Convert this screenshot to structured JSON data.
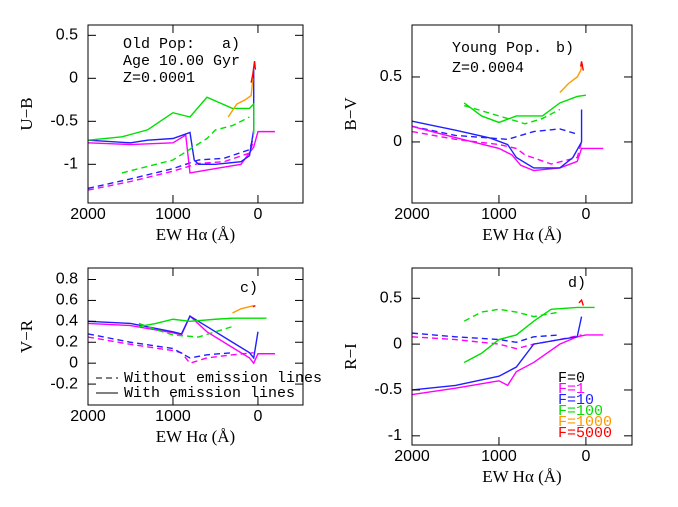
{
  "chart_data": [
    {
      "type": "line",
      "ylabel": "U−B",
      "xlabel": "EW Hα (Å)",
      "xlim": [
        2000,
        -530
      ],
      "ylim": [
        -1.45,
        0.62
      ],
      "xticks": [
        2000,
        1000,
        0
      ],
      "yticks": [
        0.5,
        0,
        -0.5,
        -1
      ],
      "annotations": [
        "Old Pop:",
        "Age 10.00 Gyr",
        "Z=0.0001",
        "a)"
      ],
      "series": [
        {
          "color": "#ff00ff",
          "dashed": true,
          "x": [
            2000,
            1500,
            1000,
            700,
            400,
            100,
            50
          ],
          "values": [
            -1.3,
            -1.2,
            -1.08,
            -0.99,
            -0.97,
            -0.87,
            -0.72
          ]
        },
        {
          "color": "#2020ff",
          "dashed": true,
          "x": [
            2000,
            1500,
            1000,
            700,
            400,
            100,
            50
          ],
          "values": [
            -1.28,
            -1.17,
            -1.05,
            -0.95,
            -0.93,
            -0.83,
            -0.68
          ]
        },
        {
          "color": "#ff00ff",
          "dashed": false,
          "x": [
            2000,
            1500,
            1000,
            850,
            800,
            500,
            200,
            50,
            0,
            -200
          ],
          "values": [
            -0.75,
            -0.77,
            -0.75,
            -0.66,
            -1.1,
            -1.05,
            -1.0,
            -0.8,
            -0.62,
            -0.62
          ]
        },
        {
          "color": "#2020ff",
          "dashed": false,
          "x": [
            2000,
            1500,
            1300,
            1000,
            800,
            750,
            700,
            500,
            200,
            100,
            50,
            50
          ],
          "values": [
            -0.72,
            -0.75,
            -0.72,
            -0.7,
            -0.63,
            -0.95,
            -1.0,
            -1.0,
            -0.97,
            -0.9,
            -0.6,
            0.1
          ]
        },
        {
          "color": "#00e000",
          "dashed": false,
          "x": [
            2000,
            1600,
            1300,
            1000,
            800,
            600,
            300,
            100,
            50,
            50
          ],
          "values": [
            -0.72,
            -0.68,
            -0.6,
            -0.4,
            -0.45,
            -0.22,
            -0.35,
            -0.35,
            -0.3,
            -0.65
          ]
        },
        {
          "color": "#00e000",
          "dashed": true,
          "x": [
            1600,
            1000,
            600,
            500,
            300,
            100
          ],
          "values": [
            -1.1,
            -0.95,
            -0.7,
            -0.6,
            -0.55,
            -0.45
          ]
        },
        {
          "color": "#ff9900",
          "dashed": false,
          "x": [
            350,
            250,
            150,
            80,
            60
          ],
          "values": [
            -0.45,
            -0.3,
            -0.25,
            -0.2,
            0
          ]
        },
        {
          "color": "#ff0000",
          "dashed": false,
          "x": [
            80,
            60,
            40,
            30
          ],
          "values": [
            -0.05,
            0.05,
            0.2,
            0.1
          ]
        }
      ]
    },
    {
      "type": "line",
      "ylabel": "B−V",
      "xlabel": "EW Hα (Å)",
      "xlim": [
        2000,
        -530
      ],
      "ylim": [
        -0.47,
        0.9
      ],
      "xticks": [
        2000,
        1000,
        0
      ],
      "yticks": [
        0.5,
        0
      ],
      "annotations": [
        "Young Pop.",
        "b)",
        "Z=0.0004"
      ],
      "series": [
        {
          "color": "#ff00ff",
          "dashed": true,
          "x": [
            2000,
            1500,
            1000,
            800,
            700,
            400,
            100,
            50
          ],
          "values": [
            0.08,
            0.02,
            -0.02,
            -0.05,
            -0.1,
            -0.17,
            -0.12,
            0
          ]
        },
        {
          "color": "#2020ff",
          "dashed": true,
          "x": [
            2000,
            1500,
            900,
            600,
            300,
            100
          ],
          "values": [
            0.12,
            0.05,
            0.02,
            0.08,
            0.1,
            0.06
          ]
        },
        {
          "color": "#ff00ff",
          "dashed": false,
          "x": [
            2000,
            1600,
            1000,
            850,
            750,
            600,
            300,
            100,
            50,
            0,
            -200
          ],
          "values": [
            0.12,
            0.05,
            -0.05,
            -0.1,
            -0.18,
            -0.22,
            -0.2,
            -0.15,
            -0.05,
            -0.05,
            -0.05
          ]
        },
        {
          "color": "#2020ff",
          "dashed": false,
          "x": [
            2000,
            1500,
            1100,
            900,
            800,
            600,
            300,
            150,
            50,
            50
          ],
          "values": [
            0.16,
            0.09,
            0.03,
            -0.02,
            -0.12,
            -0.2,
            -0.2,
            -0.12,
            0,
            0.25
          ]
        },
        {
          "color": "#00e000",
          "dashed": false,
          "x": [
            1400,
            1200,
            1000,
            800,
            500,
            300,
            100,
            0
          ],
          "values": [
            0.3,
            0.2,
            0.15,
            0.2,
            0.2,
            0.3,
            0.35,
            0.36
          ]
        },
        {
          "color": "#00e000",
          "dashed": true,
          "x": [
            1400,
            1100,
            900,
            700,
            500,
            300
          ],
          "values": [
            0.28,
            0.22,
            0.18,
            0.14,
            0.18,
            0.25
          ]
        },
        {
          "color": "#ff9900",
          "dashed": false,
          "x": [
            300,
            200,
            100,
            60,
            40
          ],
          "values": [
            0.38,
            0.45,
            0.5,
            0.55,
            0.6
          ]
        },
        {
          "color": "#ff0000",
          "dashed": false,
          "x": [
            60,
            50,
            30
          ],
          "values": [
            0.58,
            0.62,
            0.55
          ]
        }
      ]
    },
    {
      "type": "line",
      "ylabel": "V−R",
      "xlabel": "EW Hα (Å)",
      "xlim": [
        2000,
        -530
      ],
      "ylim": [
        -0.4,
        0.91
      ],
      "xticks": [
        2000,
        1000,
        0
      ],
      "yticks": [
        0.8,
        0.6,
        0.4,
        0.2,
        0,
        -0.2
      ],
      "annotations": [
        "c)"
      ],
      "style_legend": [
        {
          "name": "Without emission lines",
          "dashed": true
        },
        {
          "name": "With emission lines",
          "dashed": false
        }
      ],
      "series": [
        {
          "color": "#ff00ff",
          "dashed": true,
          "x": [
            2000,
            1500,
            1000,
            900,
            800,
            600,
            300,
            50
          ],
          "values": [
            0.25,
            0.18,
            0.12,
            0.1,
            0.0,
            0.05,
            0.08,
            0.1
          ]
        },
        {
          "color": "#2020ff",
          "dashed": true,
          "x": [
            2000,
            1500,
            1000,
            800,
            600,
            300
          ],
          "values": [
            0.28,
            0.2,
            0.14,
            0.05,
            0.08,
            0.1
          ]
        },
        {
          "color": "#ff00ff",
          "dashed": false,
          "x": [
            2000,
            1500,
            1000,
            900,
            800,
            600,
            300,
            100,
            50,
            0,
            -200
          ],
          "values": [
            0.38,
            0.36,
            0.29,
            0.27,
            0.45,
            0.3,
            0.15,
            0.05,
            0,
            0.09,
            0.09
          ]
        },
        {
          "color": "#2020ff",
          "dashed": false,
          "x": [
            2000,
            1500,
            1000,
            900,
            800,
            600,
            300,
            100,
            50,
            0
          ],
          "values": [
            0.4,
            0.38,
            0.3,
            0.28,
            0.45,
            0.35,
            0.2,
            0.1,
            0.05,
            0.3
          ]
        },
        {
          "color": "#00e000",
          "dashed": false,
          "x": [
            1400,
            1200,
            1000,
            800,
            500,
            300,
            0,
            -100
          ],
          "values": [
            0.35,
            0.38,
            0.42,
            0.4,
            0.42,
            0.43,
            0.43,
            0.43
          ]
        },
        {
          "color": "#00e000",
          "dashed": true,
          "x": [
            1400,
            1200,
            1000,
            700,
            500,
            300
          ],
          "values": [
            0.38,
            0.32,
            0.27,
            0.25,
            0.3,
            0.35
          ]
        },
        {
          "color": "#ff9900",
          "dashed": false,
          "x": [
            300,
            200,
            100,
            50
          ],
          "values": [
            0.48,
            0.52,
            0.54,
            0.55
          ]
        },
        {
          "color": "#ff0000",
          "dashed": false,
          "x": [
            60,
            30
          ],
          "values": [
            0.54,
            0.55
          ]
        }
      ]
    },
    {
      "type": "line",
      "ylabel": "R−I",
      "xlabel": "EW Hα (Å)",
      "xlim": [
        2000,
        -530
      ],
      "ylim": [
        -1.1,
        0.83
      ],
      "xticks": [
        2000,
        1000,
        0
      ],
      "yticks": [
        0.5,
        0,
        -0.5,
        -1
      ],
      "annotations": [
        "d)"
      ],
      "legend": [
        {
          "name": "F=0",
          "color": "#000000"
        },
        {
          "name": "F=1",
          "color": "#ff00ff"
        },
        {
          "name": "F=10",
          "color": "#2020ff"
        },
        {
          "name": "F=100",
          "color": "#00e000"
        },
        {
          "name": "F=1000",
          "color": "#ff9900"
        },
        {
          "name": "F=5000",
          "color": "#ff0000"
        }
      ],
      "series": [
        {
          "color": "#ff00ff",
          "dashed": true,
          "x": [
            2000,
            1500,
            1000,
            800,
            600,
            300,
            50
          ],
          "values": [
            0.08,
            0.05,
            0,
            -0.05,
            0,
            0.05,
            0.1
          ]
        },
        {
          "color": "#2020ff",
          "dashed": true,
          "x": [
            2000,
            1500,
            1000,
            800,
            600,
            300
          ],
          "values": [
            0.12,
            0.08,
            0.05,
            0.02,
            0.08,
            0.1
          ]
        },
        {
          "color": "#ff00ff",
          "dashed": false,
          "x": [
            2000,
            1500,
            1000,
            900,
            800,
            600,
            300,
            100,
            0,
            -200
          ],
          "values": [
            -0.55,
            -0.48,
            -0.4,
            -0.45,
            -0.3,
            -0.2,
            0,
            0.08,
            0.1,
            0.1
          ]
        },
        {
          "color": "#2020ff",
          "dashed": false,
          "x": [
            2000,
            1500,
            1000,
            800,
            600,
            300,
            100,
            50
          ],
          "values": [
            -0.5,
            -0.45,
            -0.35,
            -0.25,
            0,
            0.05,
            0.08,
            0.3
          ]
        },
        {
          "color": "#00e000",
          "dashed": false,
          "x": [
            1400,
            1200,
            1000,
            800,
            600,
            400,
            100,
            -100
          ],
          "values": [
            -0.2,
            -0.1,
            0.05,
            0.1,
            0.25,
            0.38,
            0.4,
            0.4
          ]
        },
        {
          "color": "#00e000",
          "dashed": true,
          "x": [
            1400,
            1200,
            1000,
            800,
            600,
            300
          ],
          "values": [
            0.25,
            0.35,
            0.38,
            0.35,
            0.3,
            0.35
          ]
        },
        {
          "color": "#ff0000",
          "dashed": false,
          "x": [
            80,
            50,
            30
          ],
          "values": [
            0.45,
            0.48,
            0.42
          ]
        }
      ]
    }
  ]
}
